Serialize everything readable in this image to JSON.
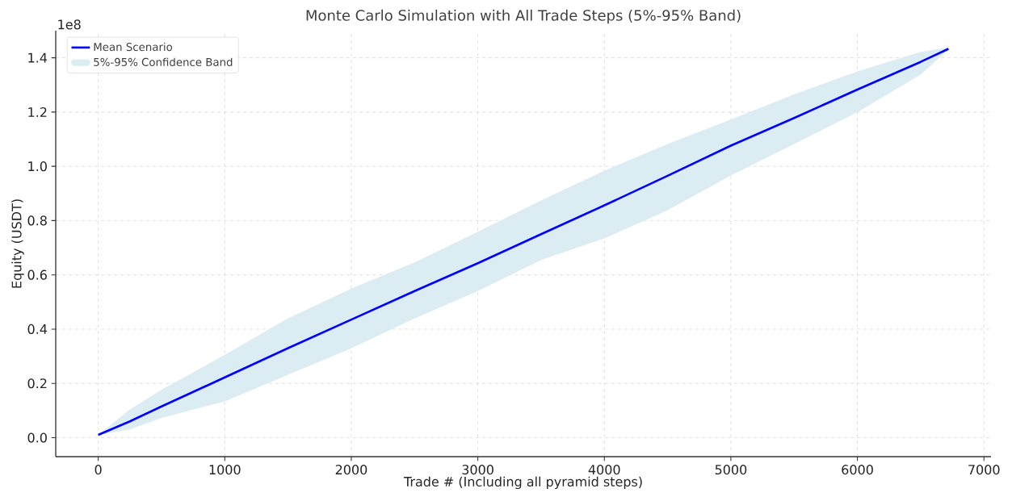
{
  "chart_data": {
    "type": "line",
    "title": "Monte Carlo Simulation with All Trade Steps (5%-95% Band)",
    "xlabel": "Trade # (Including all pyramid steps)",
    "ylabel": "Equity (USDT)",
    "annotations": [
      "1e8"
    ],
    "x": [
      0,
      250,
      500,
      1000,
      1500,
      2000,
      2500,
      3000,
      3500,
      4000,
      4500,
      5000,
      5500,
      6000,
      6500,
      6720
    ],
    "series": [
      {
        "name": "Mean Scenario",
        "type": "line",
        "color": "#0000ff",
        "values": [
          0.01,
          0.06,
          0.115,
          0.222,
          0.33,
          0.435,
          0.54,
          0.643,
          0.75,
          0.856,
          0.965,
          1.076,
          1.178,
          1.283,
          1.385,
          1.433
        ]
      },
      {
        "name": "5%-95% Confidence Band",
        "type": "area",
        "color": "#dbedf3",
        "values": [
          null,
          null,
          null,
          null,
          null,
          null,
          null,
          null,
          null,
          null,
          null,
          null,
          null,
          null,
          null,
          null
        ],
        "lower": [
          0.01,
          0.03,
          0.073,
          0.134,
          0.232,
          0.329,
          0.439,
          0.54,
          0.655,
          0.734,
          0.838,
          0.966,
          1.082,
          1.2,
          1.338,
          1.43
        ],
        "upper": [
          0.01,
          0.104,
          0.177,
          0.305,
          0.44,
          0.549,
          0.646,
          0.759,
          0.874,
          0.984,
          1.082,
          1.173,
          1.265,
          1.35,
          1.422,
          1.438
        ]
      }
    ],
    "xlim": [
      -336,
      7056
    ],
    "ylim": [
      -0.07,
      1.5
    ],
    "xticks": [
      0,
      1000,
      2000,
      3000,
      4000,
      5000,
      6000,
      7000
    ],
    "yticks": [
      {
        "value": 0,
        "label": "0.0"
      },
      {
        "value": 0.2,
        "label": "0.2"
      },
      {
        "value": 0.4,
        "label": "0.4"
      },
      {
        "value": 0.6,
        "label": "0.6"
      },
      {
        "value": 0.8,
        "label": "0.8"
      },
      {
        "value": 1.0,
        "label": "1.0"
      },
      {
        "value": 1.2,
        "label": "1.2"
      },
      {
        "value": 1.4,
        "label": "1.4"
      }
    ],
    "grid": true,
    "legend": "top left",
    "line_style": "solid",
    "marker": "none"
  }
}
